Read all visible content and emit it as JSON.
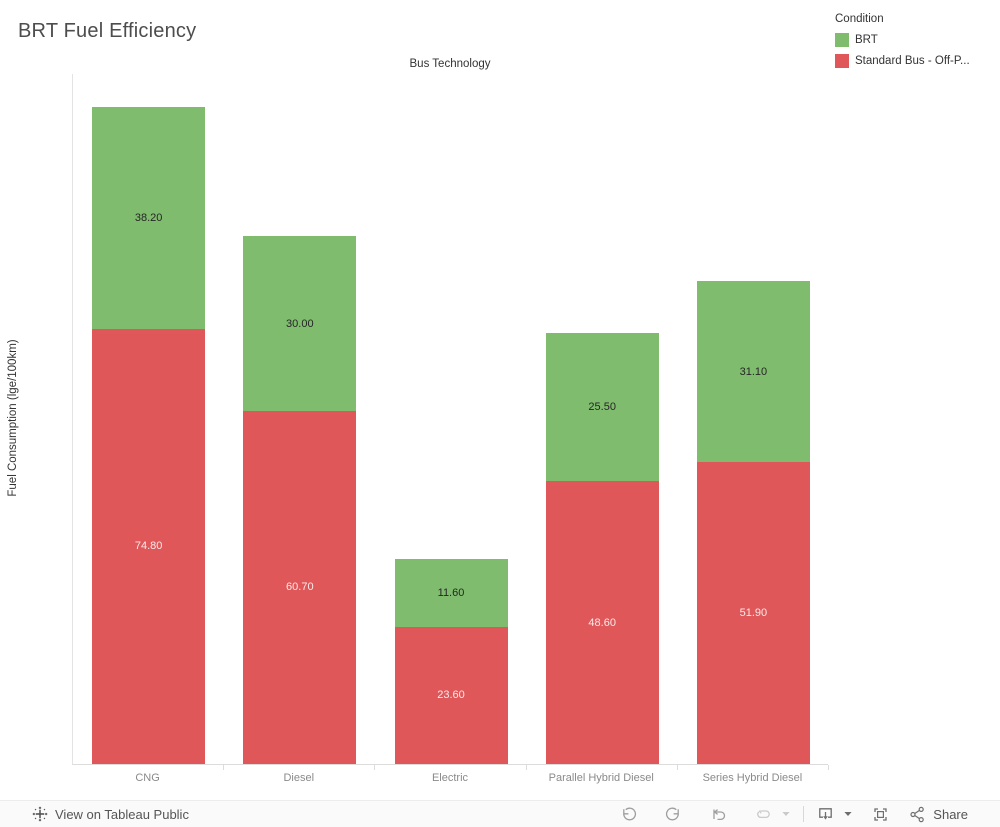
{
  "header": {
    "title": "BRT Fuel Efficiency"
  },
  "legend": {
    "title": "Condition",
    "items": [
      {
        "label": "BRT",
        "color": "#7fbc6e"
      },
      {
        "label": "Standard Bus - Off-P...",
        "color": "#e05759"
      }
    ]
  },
  "chart_data": {
    "type": "bar",
    "stacked": true,
    "column_header": "Bus Technology",
    "xlabel": "Bus Technology",
    "ylabel": "Fuel Consumption (lge/100km)",
    "categories": [
      "CNG",
      "Diesel",
      "Electric",
      "Parallel Hybrid Diesel",
      "Series Hybrid Diesel"
    ],
    "series": [
      {
        "name": "Standard Bus - Off-Peak",
        "color": "#e05759",
        "label_color": "rgba(255,255,255,0.87)",
        "values": [
          74.8,
          60.7,
          23.6,
          48.6,
          51.9
        ]
      },
      {
        "name": "BRT",
        "color": "#7fbc6e",
        "label_color": "#262626",
        "values": [
          38.2,
          30.0,
          11.6,
          25.5,
          31.1
        ]
      }
    ],
    "ylim": [
      0,
      118.8
    ],
    "grid": false,
    "legend_position": "top-right",
    "value_format": "2dp"
  },
  "toolbar": {
    "view_label": "View on Tableau Public",
    "share_label": "Share",
    "icons": [
      "tableau-logo-icon",
      "undo-icon",
      "redo-icon",
      "revert-icon",
      "refresh-icon",
      "refresh-chevron-down-icon",
      "download-icon",
      "download-chevron-down-icon",
      "fullscreen-icon",
      "share-icon"
    ]
  },
  "colors": {
    "bar_green": "#7fbc6e",
    "bar_red": "#e05759",
    "axis_line": "#e0e0e0",
    "category_label": "#8a8a8a",
    "toolbar_bg": "#fafafa"
  }
}
